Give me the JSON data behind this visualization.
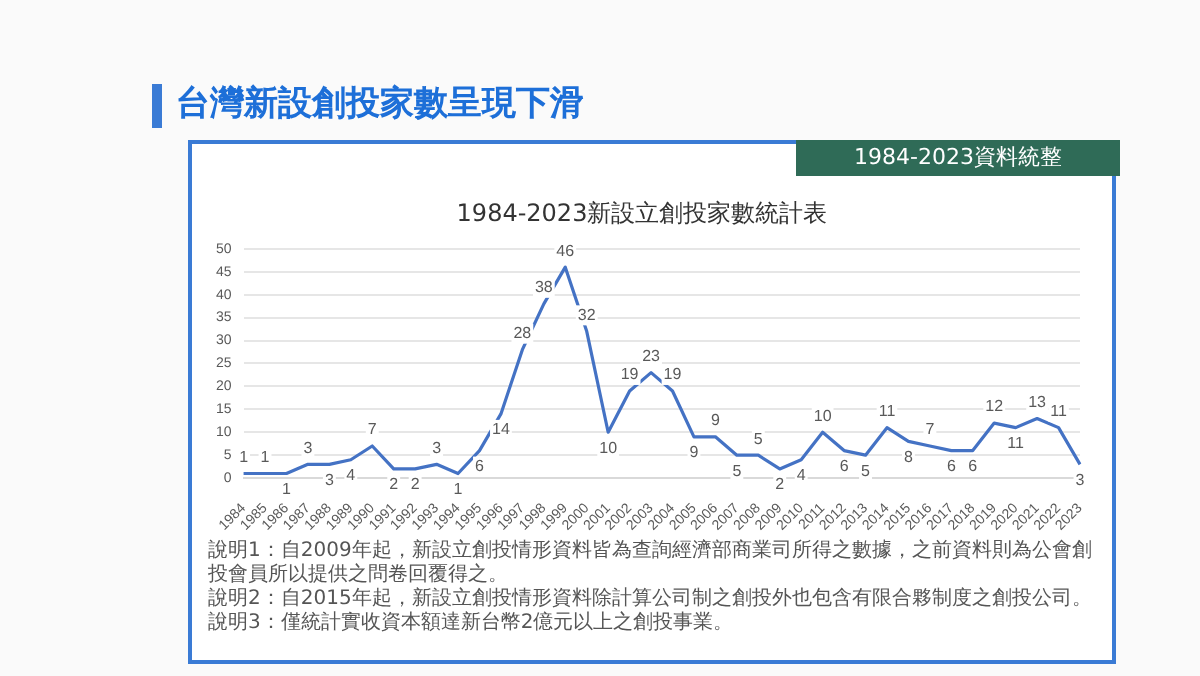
{
  "chart_data": {
    "type": "line",
    "title": "台灣新設創投家數呈現下滑",
    "subtitle": "1984-2023新設立創投家數統計表",
    "annotations": [
      "1984-2023資料統整",
      "說明1：自2009年起，新設立創投情形資料皆為查詢經濟部商業司所得之數據，之前資料則為公會創投會員所以提供之問卷回覆得之。",
      "說明2：自2015年起，新設立創投情形資料除計算公司制之創投外也包含有限合夥制度之創投公司。",
      "說明3：僅統計實收資本額達新台幣2億元以上之創投事業。"
    ],
    "categories": [
      "1984",
      "1985",
      "1986",
      "1987",
      "1988",
      "1989",
      "1990",
      "1991",
      "1992",
      "1993",
      "1994",
      "1995",
      "1996",
      "1997",
      "1998",
      "1999",
      "2000",
      "2001",
      "2002",
      "2003",
      "2004",
      "2005",
      "2006",
      "2007",
      "2008",
      "2009",
      "2010",
      "2011",
      "2012",
      "2013",
      "2014",
      "2015",
      "2016",
      "2017",
      "2018",
      "2019",
      "2020",
      "2021",
      "2022",
      "2023"
    ],
    "series": [
      {
        "color": "#4472c4",
        "values": [
          1,
          1,
          1,
          3,
          3,
          4,
          7,
          2,
          2,
          3,
          1,
          6,
          14,
          28,
          38,
          46,
          32,
          10,
          19,
          23,
          19,
          9,
          9,
          5,
          5,
          2,
          4,
          10,
          6,
          5,
          11,
          8,
          7,
          6,
          6,
          12,
          11,
          13,
          11,
          3
        ]
      }
    ],
    "ylim": [
      0,
      50
    ],
    "yticks": [
      0,
      5,
      10,
      15,
      20,
      25,
      30,
      35,
      40,
      45,
      50
    ],
    "grid": "y",
    "legend": false,
    "marker": "none",
    "line_style": "solid",
    "data_labels": true
  }
}
